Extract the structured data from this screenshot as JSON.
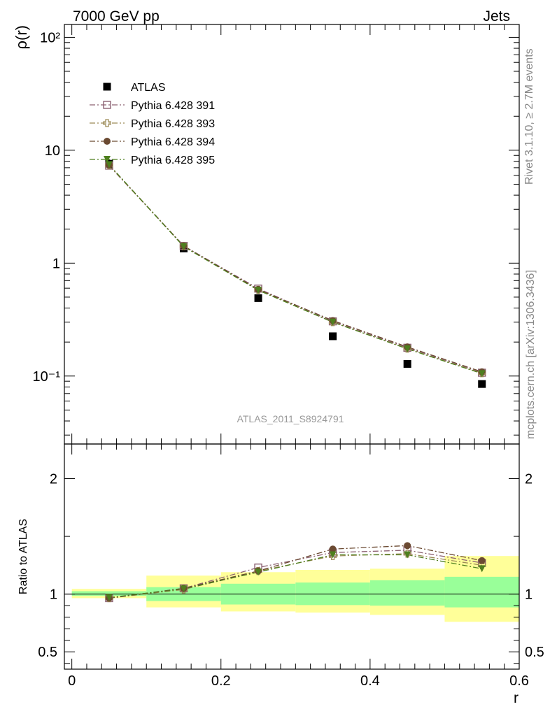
{
  "header": {
    "left": "7000 GeV pp",
    "right": "Jets"
  },
  "side_labels": {
    "rivet": "Rivet 3.1.10, ≥ 2.7M events",
    "mcplots": "mcplots.cern.ch [arXiv:1306.3436]"
  },
  "watermark": "ATLAS_2011_S8924791",
  "chart_data": [
    {
      "type": "scatter",
      "panel": "main",
      "ylabel": "ρ(r)",
      "yscale": "log",
      "xlim": [
        -0.01,
        0.6
      ],
      "ylim": [
        0.025,
        130
      ],
      "y_tick_labels": [
        "10⁻¹",
        "1",
        "10",
        "10²"
      ],
      "x": [
        0.05,
        0.15,
        0.25,
        0.35,
        0.45,
        0.55
      ],
      "series": [
        {
          "name": "ATLAS",
          "marker": "square-filled",
          "color": "#000000",
          "values": [
            7.6,
            1.35,
            0.49,
            0.225,
            0.128,
            0.085
          ]
        },
        {
          "name": "Pythia 6.428 391",
          "marker": "square-open",
          "color": "#8c6172",
          "line": "dash-dot",
          "values": [
            7.3,
            1.42,
            0.595,
            0.305,
            0.178,
            0.107
          ]
        },
        {
          "name": "Pythia 6.428 393",
          "marker": "cross-open",
          "color": "#9c8a56",
          "line": "dash-dot",
          "values": [
            7.35,
            1.41,
            0.58,
            0.3,
            0.175,
            0.106
          ]
        },
        {
          "name": "Pythia 6.428 394",
          "marker": "circle-filled",
          "color": "#6b4a32",
          "line": "dash-dot",
          "values": [
            7.4,
            1.42,
            0.585,
            0.31,
            0.181,
            0.109
          ]
        },
        {
          "name": "Pythia 6.428 395",
          "marker": "triangle-down-filled",
          "color": "#4e7f1e",
          "line": "dash-dot",
          "values": [
            7.45,
            1.4,
            0.575,
            0.3,
            0.174,
            0.105
          ]
        }
      ]
    },
    {
      "type": "scatter",
      "panel": "ratio",
      "xlabel": "r",
      "ylabel": "Ratio to ATLAS",
      "xlim": [
        -0.01,
        0.6
      ],
      "ylim": [
        0.35,
        2.3
      ],
      "x_tick_labels": [
        "0",
        "0.2",
        "0.4",
        "0.6"
      ],
      "y_tick_labels": [
        "0.5",
        "1",
        "2"
      ],
      "reference_line": 1,
      "bands": [
        {
          "x0": 0.0,
          "x1": 0.1,
          "inner": [
            0.985,
            1.025
          ],
          "outer": [
            0.965,
            1.045
          ]
        },
        {
          "x0": 0.1,
          "x1": 0.2,
          "inner": [
            0.94,
            1.06
          ],
          "outer": [
            0.885,
            1.16
          ]
        },
        {
          "x0": 0.2,
          "x1": 0.3,
          "inner": [
            0.91,
            1.09
          ],
          "outer": [
            0.85,
            1.19
          ]
        },
        {
          "x0": 0.3,
          "x1": 0.4,
          "inner": [
            0.905,
            1.1
          ],
          "outer": [
            0.84,
            1.21
          ]
        },
        {
          "x0": 0.4,
          "x1": 0.5,
          "inner": [
            0.9,
            1.12
          ],
          "outer": [
            0.82,
            1.22
          ]
        },
        {
          "x0": 0.5,
          "x1": 0.6,
          "inner": [
            0.885,
            1.15
          ],
          "outer": [
            0.76,
            1.33
          ]
        }
      ],
      "band_colors": {
        "inner": "#99ff99",
        "outer": "#ffff99"
      },
      "x": [
        0.05,
        0.15,
        0.25,
        0.35,
        0.45,
        0.55
      ],
      "series": [
        {
          "name": "Pythia 6.428 391",
          "marker": "square-open",
          "color": "#8c6172",
          "line": "dash-dot",
          "values": [
            0.965,
            1.05,
            1.23,
            1.36,
            1.38,
            1.27
          ]
        },
        {
          "name": "Pythia 6.428 393",
          "marker": "cross-open",
          "color": "#9c8a56",
          "line": "dash-dot",
          "values": [
            0.965,
            1.04,
            1.2,
            1.33,
            1.35,
            1.25
          ]
        },
        {
          "name": "Pythia 6.428 394",
          "marker": "circle-filled",
          "color": "#6b4a32",
          "line": "dash-dot",
          "values": [
            0.965,
            1.05,
            1.2,
            1.39,
            1.42,
            1.29
          ]
        },
        {
          "name": "Pythia 6.428 395",
          "marker": "triangle-down-filled",
          "color": "#4e7f1e",
          "line": "dash-dot",
          "values": [
            0.97,
            1.045,
            1.19,
            1.34,
            1.34,
            1.22
          ]
        }
      ]
    }
  ]
}
